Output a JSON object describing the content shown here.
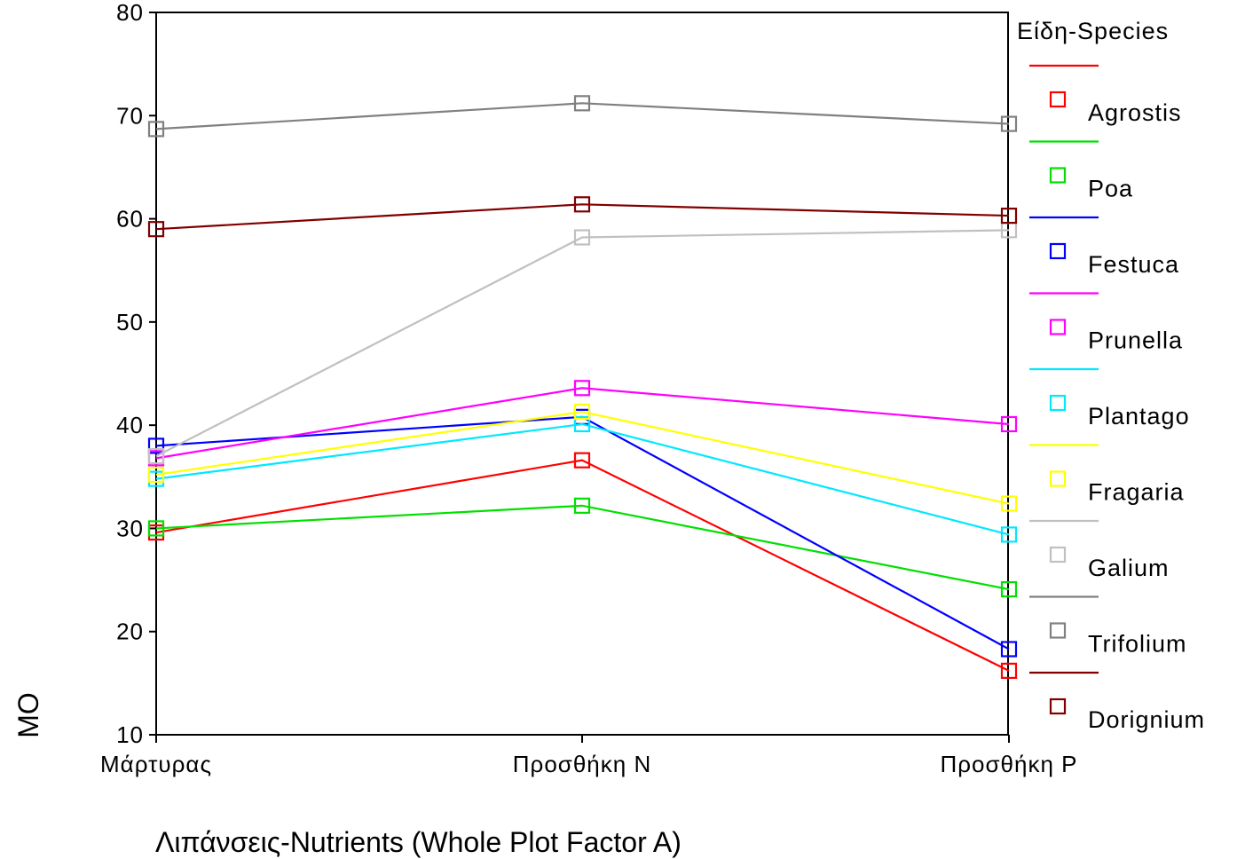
{
  "chart_data": {
    "type": "line",
    "title": "",
    "xlabel": "Λιπάνσεις-Nutrients (Whole Plot Factor A)",
    "ylabel": "MO",
    "categories": [
      "Μάρτυρας",
      "Προσθήκη N",
      "Προσθήκη P"
    ],
    "ylim": [
      10,
      80
    ],
    "yticks": [
      10,
      20,
      30,
      40,
      50,
      60,
      70,
      80
    ],
    "grid": false,
    "legend": {
      "title": "Είδη-Species",
      "position": "right"
    },
    "series": [
      {
        "name": "Agrostis",
        "color": "#ff0000",
        "values": [
          29.6,
          36.6,
          16.2
        ]
      },
      {
        "name": "Poa",
        "color": "#00e000",
        "values": [
          30.0,
          32.2,
          24.1
        ]
      },
      {
        "name": "Festuca",
        "color": "#0000ff",
        "values": [
          38.0,
          40.8,
          18.3
        ]
      },
      {
        "name": "Prunella",
        "color": "#ff00ff",
        "values": [
          36.8,
          43.6,
          40.1
        ]
      },
      {
        "name": "Plantago",
        "color": "#00e8ff",
        "values": [
          34.8,
          40.1,
          29.4
        ]
      },
      {
        "name": "Fragaria",
        "color": "#ffff00",
        "values": [
          35.2,
          41.3,
          32.4
        ]
      },
      {
        "name": "Galium",
        "color": "#c0c0c0",
        "values": [
          37.0,
          58.2,
          58.9
        ]
      },
      {
        "name": "Trifolium",
        "color": "#808080",
        "values": [
          68.7,
          71.2,
          69.2
        ]
      },
      {
        "name": "Dorignium",
        "color": "#800000",
        "values": [
          59.0,
          61.4,
          60.3
        ]
      }
    ]
  }
}
